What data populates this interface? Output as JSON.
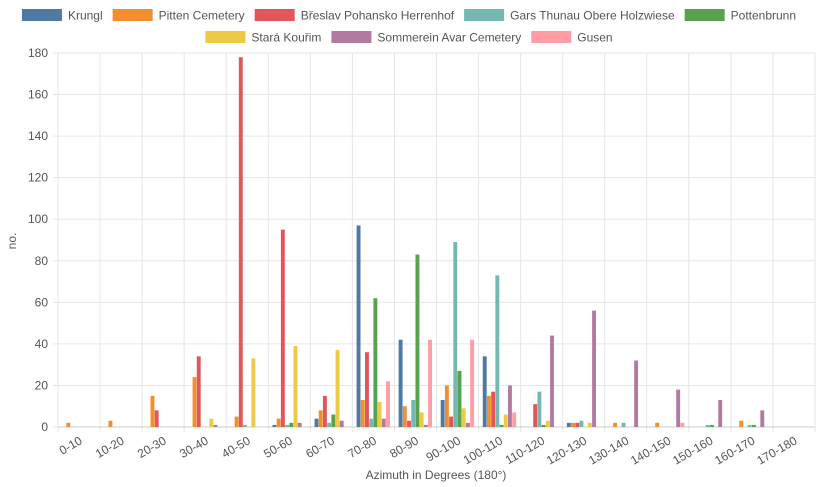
{
  "chart_data": {
    "type": "bar",
    "xlabel": "Azimuth in Degrees (180°)",
    "ylabel": "no.",
    "ylim": [
      0,
      180
    ],
    "yticks": [
      0,
      20,
      40,
      60,
      80,
      100,
      120,
      140,
      160,
      180
    ],
    "grid": true,
    "legend_position": "top",
    "categories": [
      "0-10",
      "10-20",
      "20-30",
      "30-40",
      "40-50",
      "50-60",
      "60-70",
      "70-80",
      "80-90",
      "90-100",
      "100-110",
      "110-120",
      "120-130",
      "130-140",
      "140-150",
      "150-160",
      "160-170",
      "170-180"
    ],
    "series": [
      {
        "name": "Krungl",
        "color": "#4e79a7",
        "values": [
          0,
          0,
          0,
          0,
          0,
          1,
          4,
          97,
          42,
          13,
          34,
          0,
          2,
          0,
          0,
          0,
          0,
          0
        ]
      },
      {
        "name": "Pitten Cemetery",
        "color": "#f28e2b",
        "values": [
          2,
          3,
          15,
          24,
          5,
          4,
          8,
          13,
          10,
          20,
          15,
          0,
          2,
          2,
          2,
          0,
          3,
          0
        ]
      },
      {
        "name": "Břeslav Pohansko Herrenhof",
        "color": "#e15759",
        "values": [
          0,
          0,
          8,
          34,
          178,
          95,
          15,
          36,
          3,
          5,
          17,
          11,
          2,
          0,
          0,
          0,
          0,
          0
        ]
      },
      {
        "name": "Gars Thunau Obere Holzwiese",
        "color": "#76b7b2",
        "values": [
          0,
          0,
          0,
          0,
          1,
          1,
          2,
          4,
          13,
          89,
          73,
          17,
          3,
          2,
          0,
          1,
          1,
          0
        ]
      },
      {
        "name": "Pottenbrunn",
        "color": "#59a14f",
        "values": [
          0,
          0,
          0,
          0,
          0,
          2,
          6,
          62,
          83,
          27,
          1,
          1,
          0,
          0,
          0,
          1,
          1,
          0
        ]
      },
      {
        "name": "Stará Kouřim",
        "color": "#edc948",
        "values": [
          0,
          0,
          0,
          4,
          33,
          39,
          37,
          12,
          7,
          9,
          6,
          3,
          2,
          0,
          0,
          0,
          0,
          0
        ]
      },
      {
        "name": "Sommerein Avar Cemetery",
        "color": "#b07aa1",
        "values": [
          0,
          0,
          0,
          1,
          0,
          2,
          3,
          4,
          1,
          2,
          20,
          44,
          56,
          32,
          18,
          13,
          8,
          0
        ]
      },
      {
        "name": "Gusen",
        "color": "#ff9da7",
        "values": [
          0,
          0,
          0,
          0,
          0,
          0,
          0,
          22,
          42,
          42,
          7,
          0,
          0,
          0,
          2,
          0,
          0,
          0
        ]
      }
    ]
  }
}
